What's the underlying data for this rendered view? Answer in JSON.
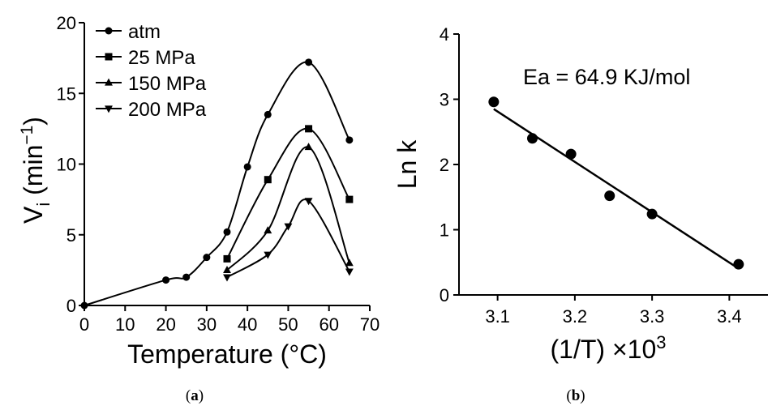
{
  "chart_data": [
    {
      "type": "line",
      "panel_label": {
        "open": "(",
        "letter": "a",
        "close": ")"
      },
      "xlabel": "Temperature (°C)",
      "ylabel": {
        "main": "V",
        "sub": "i",
        "rest": " (min",
        "sup": "−1",
        "end": ")"
      },
      "xlim": [
        0,
        70
      ],
      "ylim": [
        0,
        20
      ],
      "xticks": [
        "0",
        "10",
        "20",
        "30",
        "40",
        "50",
        "60",
        "70"
      ],
      "yticks": [
        "0",
        "5",
        "10",
        "15",
        "20"
      ],
      "grid": false,
      "legend_position": "top-left",
      "series": [
        {
          "name": "atm",
          "marker": "circle",
          "origin": true,
          "x": [
            20,
            25,
            30,
            35,
            40,
            45,
            55,
            65
          ],
          "y": [
            1.8,
            2.0,
            3.4,
            5.2,
            9.8,
            13.5,
            17.2,
            11.7
          ]
        },
        {
          "name": "25 MPa",
          "marker": "square",
          "x": [
            35,
            45,
            55,
            65
          ],
          "y": [
            3.3,
            8.9,
            12.5,
            7.5
          ]
        },
        {
          "name": "150 MPa",
          "marker": "triangle-up",
          "x": [
            35,
            45,
            55,
            65
          ],
          "y": [
            2.5,
            5.3,
            11.2,
            3.0
          ]
        },
        {
          "name": "200 MPa",
          "marker": "triangle-down",
          "x": [
            35,
            45,
            50,
            55,
            65
          ],
          "y": [
            2.0,
            3.6,
            5.6,
            7.4,
            2.4
          ]
        }
      ]
    },
    {
      "type": "scatter",
      "panel_label": {
        "open": "(",
        "letter": "b",
        "close": ")"
      },
      "xlabel": "(1/T) ×10",
      "xlabel_sup": "3",
      "ylabel": "Ln k",
      "xlim": [
        3.05,
        3.45
      ],
      "ylim": [
        0,
        4
      ],
      "xticks": [
        "3.1",
        "3.2",
        "3.3",
        "3.4"
      ],
      "yticks": [
        "0",
        "1",
        "2",
        "3",
        "4"
      ],
      "grid": false,
      "annotation": "Ea = 64.9 KJ/mol",
      "x": [
        3.095,
        3.145,
        3.195,
        3.245,
        3.3,
        3.412
      ],
      "y": [
        2.96,
        2.4,
        2.16,
        1.52,
        1.24,
        0.47
      ],
      "fit_line": {
        "x": [
          3.095,
          3.41
        ],
        "y": [
          2.85,
          0.42
        ]
      }
    }
  ]
}
